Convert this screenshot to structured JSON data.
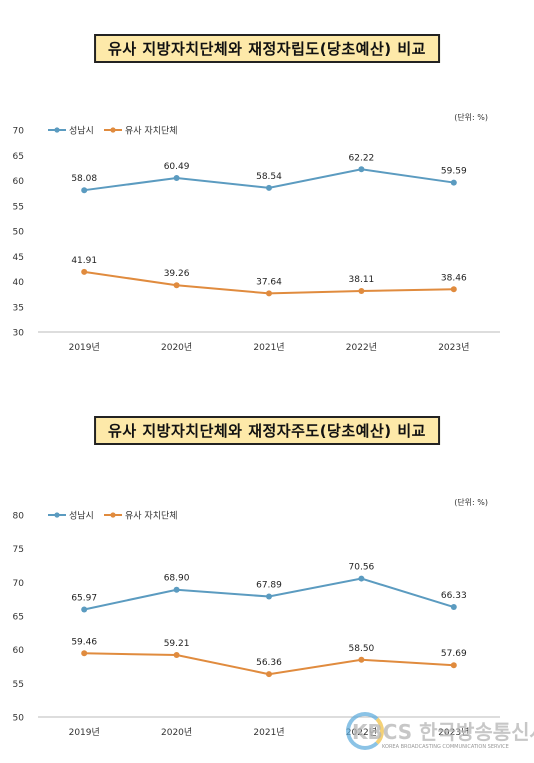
{
  "chart_data": [
    {
      "type": "line",
      "title": "유사 지방자치단체와 재정자립도(당초예산) 비교",
      "unit_note": "(단위: %)",
      "categories": [
        "2019년",
        "2020년",
        "2021년",
        "2022년",
        "2023년"
      ],
      "ylim": [
        30,
        70
      ],
      "yticks": [
        30,
        35,
        40,
        45,
        50,
        55,
        60,
        65,
        70
      ],
      "legend_position": "top-left",
      "grid": false,
      "series": [
        {
          "name": "성남시",
          "color": "#5b9bc0",
          "values": [
            58.08,
            60.49,
            58.54,
            62.22,
            59.59
          ],
          "labels": [
            "58.08",
            "60.49",
            "58.54",
            "62.22",
            "59.59"
          ]
        },
        {
          "name": "유사 자치단체",
          "color": "#e08b3e",
          "values": [
            41.91,
            39.26,
            37.64,
            38.11,
            38.46
          ],
          "labels": [
            "41.91",
            "39.26",
            "37.64",
            "38.11",
            "38.46"
          ]
        }
      ]
    },
    {
      "type": "line",
      "title": "유사 지방자치단체와 재정자주도(당초예산) 비교",
      "unit_note": "(단위: %)",
      "categories": [
        "2019년",
        "2020년",
        "2021년",
        "2022년",
        "2023년"
      ],
      "ylim": [
        50,
        80
      ],
      "yticks": [
        50,
        55,
        60,
        65,
        70,
        75,
        80
      ],
      "legend_position": "top-left",
      "grid": false,
      "series": [
        {
          "name": "성남시",
          "color": "#5b9bc0",
          "values": [
            65.97,
            68.9,
            67.89,
            70.56,
            66.33
          ],
          "labels": [
            "65.97",
            "68.90",
            "67.89",
            "70.56",
            "66.33"
          ]
        },
        {
          "name": "유사 자치단체",
          "color": "#e08b3e",
          "values": [
            59.46,
            59.21,
            56.36,
            58.5,
            57.69
          ],
          "labels": [
            "59.46",
            "59.21",
            "56.36",
            "58.50",
            "57.69"
          ]
        }
      ]
    }
  ],
  "watermark": {
    "logo_text": "KBCS 한국방송통신사",
    "sub_text": "KOREA BROADCASTING COMMUNICATION SERVICE"
  }
}
